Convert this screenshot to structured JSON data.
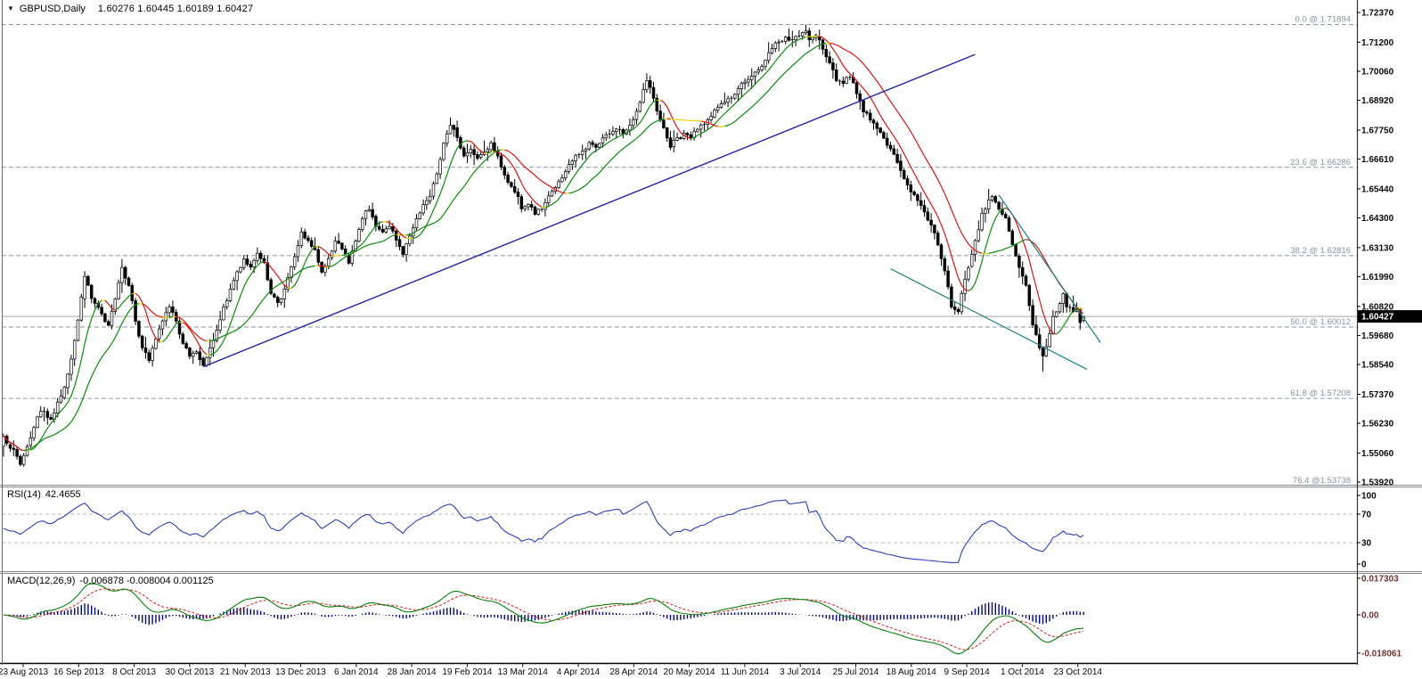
{
  "window": {
    "symbol_period": "GBPUSD,Daily",
    "ohlc_text": "1.60276 1.60445 1.60189 1.60427",
    "dropdown_icon": "filled-down-triangle"
  },
  "colors": {
    "background": "#ffffff",
    "candle_up_fill": "#ffffff",
    "candle_down_fill": "#000000",
    "candle_border": "#000000",
    "ma_up": "#0e8a0e",
    "ma_down": "#e31212",
    "ma_flat": "#e8d400",
    "trendline": "#22229e",
    "channel": "#1d7f7f",
    "fib": "#8795a1",
    "current_price_line": "#a8a8a8",
    "price_tag_bg": "#000000",
    "price_tag_text": "#ffffff",
    "rsi_line": "#2e3fb3",
    "macd_bars": "#00067d",
    "macd_line": "#0b7d0b",
    "macd_signal": "#d42020",
    "macd_axis_text": "#6e3434",
    "axis_text": "#0a0a0a",
    "separator": "#8a8a8a",
    "frame": "#333333"
  },
  "chart_data": {
    "type": "candlestick",
    "symbol": "GBPUSD",
    "timeframe": "Daily",
    "last_open": 1.60276,
    "last_high": 1.60445,
    "last_low": 1.60189,
    "last_close": 1.60427,
    "current_price": "1.60427",
    "price_axis_ticks": [
      "1.72370",
      "1.71200",
      "1.70060",
      "1.68920",
      "1.67750",
      "1.66610",
      "1.65440",
      "1.64300",
      "1.63130",
      "1.61990",
      "1.60820",
      "1.59680",
      "1.58540",
      "1.57370",
      "1.56230",
      "1.55060",
      "1.53920"
    ],
    "time_axis_labels": [
      "23 Aug 2013",
      "16 Sep 2013",
      "8 Oct 2013",
      "30 Oct 2013",
      "21 Nov 2013",
      "13 Dec 2013",
      "6 Jan 2014",
      "28 Jan 2014",
      "19 Feb 2014",
      "13 Mar 2014",
      "4 Apr 2014",
      "28 Apr 2014",
      "20 May 2014",
      "11 Jun 2014",
      "3 Jul 2014",
      "25 Jul 2014",
      "18 Aug 2014",
      "9 Sep 2014",
      "1 Oct 2014",
      "23 Oct 2014"
    ],
    "fib_levels": [
      {
        "label": "0.0 @ 1.71894",
        "price": 1.71894
      },
      {
        "label": "23.6 @ 1.66286",
        "price": 1.66286
      },
      {
        "label": "38.2 @ 1.62816",
        "price": 1.62816
      },
      {
        "label": "50.0 @ 1.60012",
        "price": 1.60012
      },
      {
        "label": "61.8 @ 1.57208",
        "price": 1.57208
      },
      {
        "label": "76.4 @1.53738",
        "price": 1.53738
      }
    ],
    "trendline": {
      "from_index": 59,
      "from_price": 1.5845,
      "to_index": 287,
      "to_price": 1.7072
    },
    "channel_lines": [
      {
        "from_index": 262,
        "from_price": 1.623,
        "to_index": 320,
        "to_price": 1.5835
      },
      {
        "from_index": 294,
        "from_price": 1.652,
        "to_index": 324,
        "to_price": 1.594
      }
    ],
    "candle_count": 320,
    "close_path": [
      [
        0,
        1.557
      ],
      [
        3,
        1.5518
      ],
      [
        5,
        1.5462
      ],
      [
        9,
        1.5606
      ],
      [
        11,
        1.5669
      ],
      [
        14,
        1.5641
      ],
      [
        17,
        1.5728
      ],
      [
        19,
        1.5816
      ],
      [
        22,
        1.6026
      ],
      [
        24,
        1.6201
      ],
      [
        26,
        1.6114
      ],
      [
        28,
        1.6079
      ],
      [
        31,
        1.6009
      ],
      [
        33,
        1.6114
      ],
      [
        35,
        1.6236
      ],
      [
        37,
        1.6166
      ],
      [
        39,
        1.6026
      ],
      [
        41,
        1.5921
      ],
      [
        43,
        1.5868
      ],
      [
        45,
        1.5956
      ],
      [
        47,
        1.6026
      ],
      [
        49,
        1.6079
      ],
      [
        51,
        1.6026
      ],
      [
        53,
        1.5938
      ],
      [
        55,
        1.5886
      ],
      [
        57,
        1.5903
      ],
      [
        59,
        1.5851
      ],
      [
        61,
        1.5921
      ],
      [
        63,
        1.5991
      ],
      [
        65,
        1.6079
      ],
      [
        67,
        1.6149
      ],
      [
        69,
        1.6219
      ],
      [
        71,
        1.6271
      ],
      [
        73,
        1.6236
      ],
      [
        75,
        1.6289
      ],
      [
        77,
        1.6254
      ],
      [
        79,
        1.6131
      ],
      [
        81,
        1.6096
      ],
      [
        83,
        1.6149
      ],
      [
        85,
        1.6236
      ],
      [
        87,
        1.6324
      ],
      [
        88,
        1.6376
      ],
      [
        90,
        1.6341
      ],
      [
        92,
        1.6306
      ],
      [
        94,
        1.6219
      ],
      [
        96,
        1.6271
      ],
      [
        98,
        1.6341
      ],
      [
        100,
        1.6306
      ],
      [
        102,
        1.6254
      ],
      [
        104,
        1.6341
      ],
      [
        106,
        1.6429
      ],
      [
        108,
        1.6464
      ],
      [
        110,
        1.6399
      ],
      [
        112,
        1.6376
      ],
      [
        114,
        1.6394
      ],
      [
        116,
        1.6341
      ],
      [
        118,
        1.6289
      ],
      [
        120,
        1.6359
      ],
      [
        122,
        1.6429
      ],
      [
        124,
        1.6481
      ],
      [
        126,
        1.6516
      ],
      [
        128,
        1.6604
      ],
      [
        130,
        1.6726
      ],
      [
        132,
        1.6796
      ],
      [
        134,
        1.6744
      ],
      [
        136,
        1.6674
      ],
      [
        138,
        1.6699
      ],
      [
        140,
        1.6666
      ],
      [
        142,
        1.6691
      ],
      [
        144,
        1.6726
      ],
      [
        146,
        1.6674
      ],
      [
        148,
        1.6596
      ],
      [
        150,
        1.6551
      ],
      [
        152,
        1.6516
      ],
      [
        153,
        1.6464
      ],
      [
        155,
        1.6481
      ],
      [
        157,
        1.6446
      ],
      [
        159,
        1.6464
      ],
      [
        161,
        1.6516
      ],
      [
        163,
        1.6551
      ],
      [
        165,
        1.6586
      ],
      [
        167,
        1.6639
      ],
      [
        169,
        1.6674
      ],
      [
        171,
        1.6691
      ],
      [
        173,
        1.6726
      ],
      [
        175,
        1.6709
      ],
      [
        177,
        1.6744
      ],
      [
        179,
        1.6761
      ],
      [
        181,
        1.6779
      ],
      [
        183,
        1.6761
      ],
      [
        185,
        1.6796
      ],
      [
        187,
        1.6849
      ],
      [
        189,
        1.6936
      ],
      [
        190,
        1.6971
      ],
      [
        192,
        1.6901
      ],
      [
        194,
        1.6814
      ],
      [
        196,
        1.6744
      ],
      [
        197,
        1.6709
      ],
      [
        199,
        1.6744
      ],
      [
        201,
        1.6761
      ],
      [
        203,
        1.6744
      ],
      [
        205,
        1.6779
      ],
      [
        207,
        1.6796
      ],
      [
        209,
        1.6831
      ],
      [
        211,
        1.6866
      ],
      [
        213,
        1.6884
      ],
      [
        215,
        1.6901
      ],
      [
        217,
        1.6936
      ],
      [
        219,
        1.6961
      ],
      [
        221,
        1.6989
      ],
      [
        223,
        1.7014
      ],
      [
        225,
        1.7049
      ],
      [
        227,
        1.7094
      ],
      [
        229,
        1.712
      ],
      [
        231,
        1.7138
      ],
      [
        233,
        1.7129
      ],
      [
        235,
        1.7146
      ],
      [
        237,
        1.7164
      ],
      [
        238,
        1.7129
      ],
      [
        240,
        1.7146
      ],
      [
        242,
        1.7094
      ],
      [
        244,
        1.7041
      ],
      [
        246,
        1.6971
      ],
      [
        248,
        1.6961
      ],
      [
        250,
        1.6981
      ],
      [
        252,
        1.6919
      ],
      [
        254,
        1.6849
      ],
      [
        256,
        1.6814
      ],
      [
        258,
        1.6779
      ],
      [
        260,
        1.6744
      ],
      [
        262,
        1.6699
      ],
      [
        264,
        1.6649
      ],
      [
        266,
        1.6586
      ],
      [
        268,
        1.6534
      ],
      [
        270,
        1.6499
      ],
      [
        272,
        1.6455
      ],
      [
        274,
        1.6403
      ],
      [
        276,
        1.6324
      ],
      [
        278,
        1.6219
      ],
      [
        280,
        1.6079
      ],
      [
        282,
        1.6061
      ],
      [
        283,
        1.6131
      ],
      [
        285,
        1.6236
      ],
      [
        287,
        1.6341
      ],
      [
        289,
        1.6446
      ],
      [
        291,
        1.6499
      ],
      [
        292,
        1.6516
      ],
      [
        294,
        1.6464
      ],
      [
        296,
        1.6429
      ],
      [
        298,
        1.6324
      ],
      [
        300,
        1.6236
      ],
      [
        302,
        1.6166
      ],
      [
        304,
        1.6009
      ],
      [
        306,
        1.5921
      ],
      [
        307,
        1.5886
      ],
      [
        309,
        1.5973
      ],
      [
        310,
        1.6044
      ],
      [
        312,
        1.6096
      ],
      [
        313,
        1.6131
      ],
      [
        314,
        1.6079
      ],
      [
        316,
        1.6061
      ],
      [
        317,
        1.607
      ],
      [
        318,
        1.6018
      ],
      [
        319,
        1.60427
      ]
    ],
    "special_candles": [
      {
        "index": 237,
        "high": 1.71894
      },
      {
        "index": 282,
        "low": 1.6051
      },
      {
        "index": 307,
        "low": 1.5826
      },
      {
        "index": 319,
        "open": 1.60276,
        "high": 1.60445,
        "low": 1.60189,
        "close": 1.60427
      }
    ],
    "moving_averages": [
      {
        "period": 8,
        "style": "slope-colored"
      },
      {
        "period": 20,
        "style": "slope-colored"
      }
    ],
    "rsi": {
      "label": "RSI(14)",
      "value": "42.4655",
      "period": 14,
      "axis_labels": [
        "100",
        "70",
        "30",
        "0"
      ],
      "level_lines": [
        70,
        30
      ]
    },
    "macd": {
      "label": "MACD(12,26,9)",
      "values_text": "-0.006878 -0.008004 0.001125",
      "fast": 12,
      "slow": 26,
      "signal": 9,
      "axis_labels": [
        "0.017303",
        "0.00",
        "-0.018061"
      ]
    }
  }
}
